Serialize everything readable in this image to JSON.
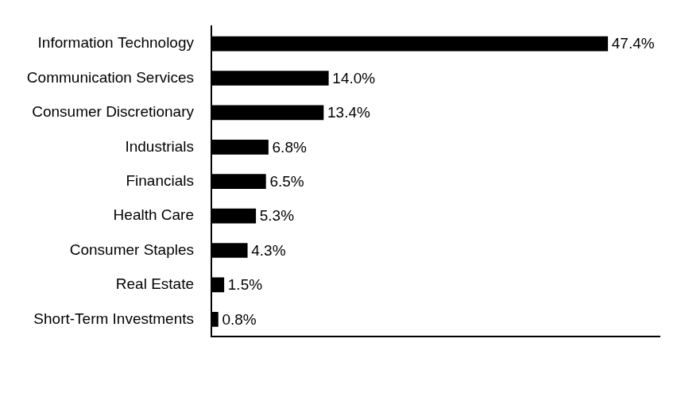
{
  "chart_data": {
    "type": "bar",
    "orientation": "horizontal",
    "categories": [
      "Information Technology",
      "Communication Services",
      "Consumer Discretionary",
      "Industrials",
      "Financials",
      "Health Care",
      "Consumer Staples",
      "Real Estate",
      "Short-Term Investments"
    ],
    "values": [
      47.4,
      14.0,
      13.4,
      6.8,
      6.5,
      5.3,
      4.3,
      1.5,
      0.8
    ],
    "value_labels": [
      "47.4%",
      "14.0%",
      "13.4%",
      "6.8%",
      "6.5%",
      "5.3%",
      "4.3%",
      "1.5%",
      "0.8%"
    ],
    "color": "#000000",
    "xlim": [
      0,
      53.6
    ],
    "grid": false,
    "data_labels": true,
    "tick_labels": "y"
  }
}
